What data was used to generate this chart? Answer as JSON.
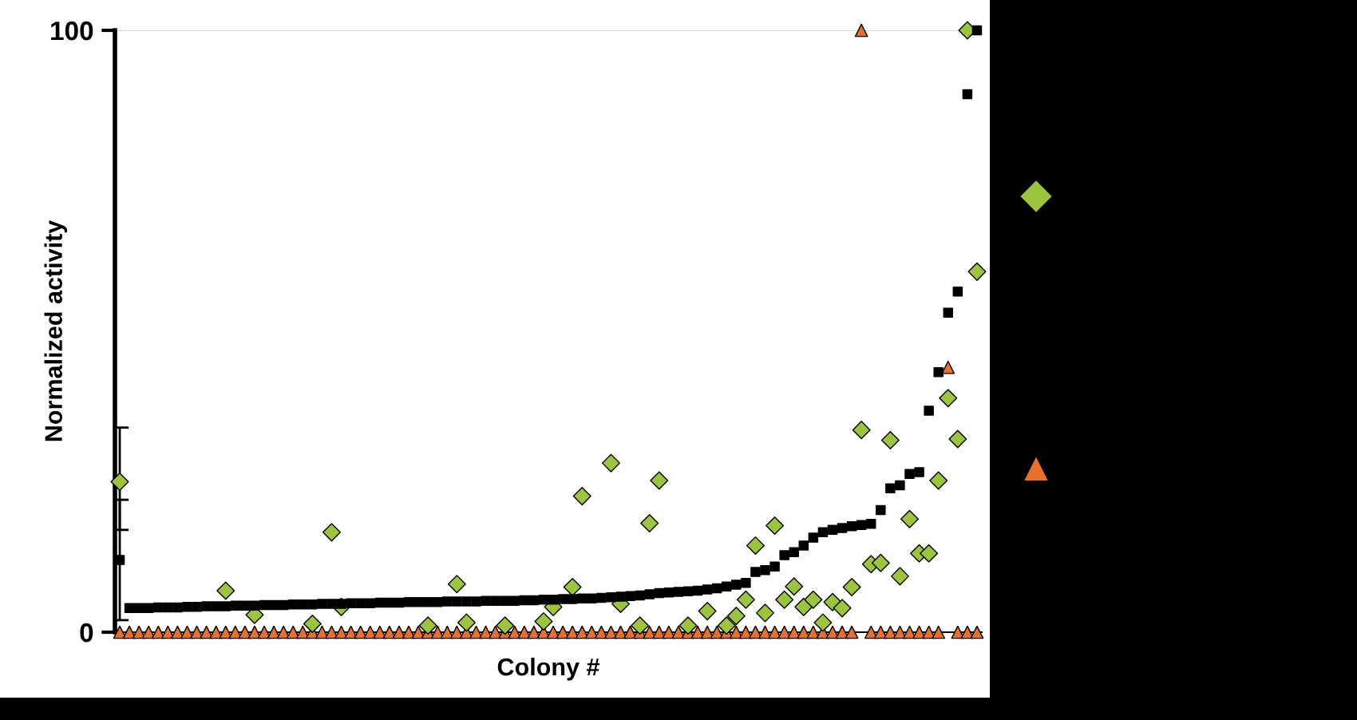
{
  "chart_data": {
    "type": "scatter",
    "xlabel": "Colony #",
    "ylabel": "Normalized activity",
    "categories": [
      null,
      null,
      null,
      null,
      null,
      null,
      null,
      null,
      null,
      null,
      null,
      null,
      null,
      null,
      null,
      null,
      null,
      null,
      null,
      null,
      null,
      null,
      null,
      null,
      null,
      null,
      null,
      null,
      null,
      null,
      null,
      null,
      null,
      null,
      null,
      null,
      null,
      null,
      null,
      null,
      null,
      null,
      null,
      null,
      null,
      null,
      null,
      null,
      null,
      null,
      null,
      null,
      null,
      null,
      null,
      null,
      null,
      null,
      null,
      null,
      null,
      null,
      null,
      null,
      null,
      null,
      null,
      null,
      null,
      null,
      null,
      null,
      null,
      null,
      null,
      null,
      null,
      null,
      null,
      null,
      null,
      null,
      null,
      null,
      null,
      null,
      null,
      null,
      null,
      null
    ],
    "ylim": [
      0,
      100
    ],
    "yticks": [
      0,
      100
    ],
    "grid": "y",
    "series": [
      {
        "color": "#000000",
        "marker": "square",
        "values": [
          12,
          4.0,
          4.0,
          4.0,
          4.1,
          4.1,
          4.1,
          4.2,
          4.2,
          4.3,
          4.3,
          4.3,
          4.4,
          4.4,
          4.4,
          4.5,
          4.5,
          4.5,
          4.6,
          4.6,
          4.6,
          4.7,
          4.7,
          4.7,
          4.8,
          4.8,
          4.8,
          4.9,
          4.9,
          4.9,
          5.0,
          5.0,
          5.0,
          5.0,
          5.1,
          5.1,
          5.1,
          5.1,
          5.2,
          5.2,
          5.2,
          5.2,
          5.3,
          5.3,
          5.4,
          5.4,
          5.5,
          5.5,
          5.6,
          5.6,
          5.7,
          5.8,
          5.9,
          6.0,
          6.1,
          6.3,
          6.5,
          6.6,
          6.7,
          6.8,
          6.9,
          7.1,
          7.3,
          7.6,
          7.9,
          8.2,
          10.0,
          10.3,
          10.9,
          12.8,
          13.3,
          14.4,
          15.7,
          16.6,
          17.0,
          17.3,
          17.6,
          17.8,
          18.0,
          20.3,
          23.9,
          24.4,
          26.3,
          26.6,
          36.8,
          43.2,
          53.1,
          56.6,
          89.4,
          100
        ],
        "errors": [
          [
            2,
            22
          ],
          null,
          null,
          null,
          null,
          null,
          null,
          null,
          null,
          null,
          null,
          null,
          null,
          null,
          null,
          null,
          null,
          null,
          null,
          null,
          null,
          null,
          null,
          null,
          null,
          null,
          null,
          null,
          null,
          null,
          null,
          null,
          null,
          null,
          null,
          null,
          null,
          null,
          null,
          null,
          null,
          null,
          null,
          null,
          null,
          null,
          null,
          null,
          null,
          null,
          null,
          null,
          null,
          null,
          null,
          null,
          null,
          null,
          null,
          null,
          null,
          null,
          null,
          null,
          null,
          null,
          null,
          null,
          null,
          null,
          null,
          null,
          null,
          null,
          null,
          null,
          null,
          null,
          null,
          null,
          null,
          null,
          null,
          null,
          null,
          null,
          null,
          null,
          null,
          null
        ]
      },
      {
        "color": "#9bc53d",
        "marker": "diamond",
        "values": [
          25,
          null,
          null,
          null,
          null,
          null,
          null,
          null,
          null,
          null,
          null,
          6.9,
          null,
          null,
          2.9,
          null,
          null,
          null,
          null,
          null,
          1.4,
          null,
          16.6,
          4.2,
          null,
          null,
          null,
          null,
          null,
          null,
          null,
          null,
          1.1,
          null,
          null,
          8.0,
          1.6,
          null,
          null,
          null,
          1.1,
          null,
          null,
          null,
          1.8,
          4.2,
          null,
          7.5,
          22.6,
          null,
          null,
          28.1,
          4.7,
          null,
          1.1,
          18.1,
          25.2,
          null,
          null,
          1.1,
          null,
          3.5,
          null,
          1.1,
          2.7,
          5.4,
          14.4,
          3.2,
          17.7,
          5.4,
          7.6,
          4.2,
          5.4,
          1.6,
          5.0,
          4.0,
          7.5,
          33.6,
          11.3,
          11.5,
          31.9,
          9.3,
          18.8,
          13.1,
          13.1,
          25.2,
          38.9,
          32.1,
          100,
          59.9
        ],
        "errors": [
          [
            17,
            34
          ],
          null,
          null,
          null,
          null,
          null,
          null,
          null,
          null,
          null,
          null,
          null,
          null,
          null,
          null,
          null,
          null,
          null,
          null,
          null,
          null,
          null,
          null,
          null,
          null,
          null,
          null,
          null,
          null,
          null,
          null,
          null,
          null,
          null,
          null,
          null,
          null,
          null,
          null,
          null,
          null,
          null,
          null,
          null,
          null,
          null,
          null,
          null,
          null,
          null,
          null,
          null,
          null,
          null,
          null,
          null,
          null,
          null,
          null,
          null,
          null,
          null,
          null,
          null,
          null,
          null,
          null,
          null,
          null,
          null,
          null,
          null,
          null,
          null,
          null,
          null,
          null,
          null,
          null,
          null,
          null,
          null,
          null,
          null,
          null,
          null,
          null,
          null,
          null,
          null
        ]
      },
      {
        "color": "#e8702a",
        "marker": "triangle",
        "values": [
          0,
          0,
          0,
          0,
          0,
          0,
          0,
          0,
          0,
          0,
          0,
          0,
          0,
          0,
          0,
          0,
          0,
          0,
          0,
          0,
          0,
          0,
          0,
          0,
          0,
          0,
          0,
          0,
          0,
          0,
          0,
          0,
          0,
          0,
          0,
          0,
          0,
          0,
          0,
          0,
          0,
          0,
          0,
          0,
          0,
          0,
          0,
          0,
          0,
          0,
          0,
          0,
          0,
          0,
          0,
          0,
          0,
          0,
          0,
          0,
          0,
          0,
          0,
          0,
          0,
          0,
          0,
          0,
          0,
          0,
          0,
          0,
          0,
          0,
          0,
          0,
          0,
          100,
          0,
          0,
          0,
          0,
          0,
          0,
          0,
          0,
          44,
          0,
          0,
          0
        ]
      }
    ]
  }
}
